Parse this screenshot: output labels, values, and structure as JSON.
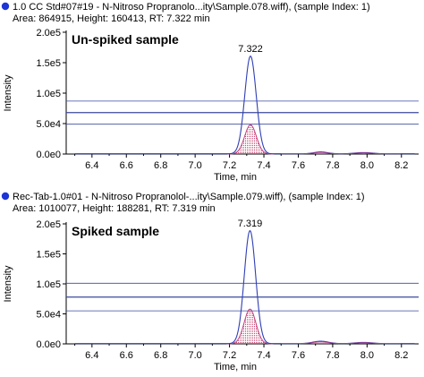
{
  "chart_data": [
    {
      "type": "line",
      "header_line1": "1.0 CC Std#07#19 - N-Nitroso Propranolo...ity\\Sample.078.wiff), (sample Index: 1)",
      "header_line2": "Area: 864915, Height: 160413, RT: 7.322 min",
      "annotation": "Un-spiked sample",
      "peak_label": "7.322",
      "xlabel": "Time, min",
      "ylabel": "Intensity",
      "xlim": [
        6.25,
        8.3
      ],
      "ylim": [
        0,
        200000
      ],
      "x_ticks": [
        "6.4",
        "6.6",
        "6.8",
        "7.0",
        "7.2",
        "7.4",
        "7.6",
        "7.8",
        "8.0",
        "8.2"
      ],
      "y_ticks": [
        "0.0e0",
        "5.0e4",
        "1.0e5",
        "1.5e5",
        "2.0e5"
      ],
      "grid": false,
      "h_lines": [
        87000,
        68000,
        49000
      ],
      "peak": {
        "rt": 7.322,
        "height": 160413,
        "sigma": 0.033
      },
      "subpeak": {
        "rt": 7.322,
        "height": 48000,
        "sigma": 0.034
      },
      "minor_peaks": [
        {
          "rt": 7.73,
          "height": 3000,
          "sigma": 0.04
        },
        {
          "rt": 7.98,
          "height": 2000,
          "sigma": 0.05
        }
      ]
    },
    {
      "type": "line",
      "header_line1": "Rec-Tab-1.0#01 - N-Nitroso Propranolol-...ity\\Sample.079.wiff), (sample Index: 1)",
      "header_line2": "Area: 1010077, Height: 188281, RT: 7.319 min",
      "annotation": "Spiked sample",
      "peak_label": "7.319",
      "xlabel": "Time, min",
      "ylabel": "Intensity",
      "xlim": [
        6.25,
        8.3
      ],
      "ylim": [
        0,
        200000
      ],
      "x_ticks": [
        "6.4",
        "6.6",
        "6.8",
        "7.0",
        "7.2",
        "7.4",
        "7.6",
        "7.8",
        "8.0",
        "8.2"
      ],
      "y_ticks": [
        "0.0e0",
        "5.0e4",
        "1.0e5",
        "1.5e5",
        "2.0e5"
      ],
      "grid": false,
      "h_lines": [
        101000,
        78000,
        55000
      ],
      "peak": {
        "rt": 7.319,
        "height": 188281,
        "sigma": 0.033
      },
      "subpeak": {
        "rt": 7.319,
        "height": 58000,
        "sigma": 0.034
      },
      "minor_peaks": [
        {
          "rt": 7.73,
          "height": 4000,
          "sigma": 0.045
        },
        {
          "rt": 7.98,
          "height": 2000,
          "sigma": 0.05
        }
      ]
    }
  ],
  "colors": {
    "trace": "#2f3fb5",
    "subtrace": "#c04080",
    "fill_dots": "#c03060",
    "h_line": "#3b4a9c",
    "axis": "#000000",
    "marker": "#1d35d6"
  }
}
